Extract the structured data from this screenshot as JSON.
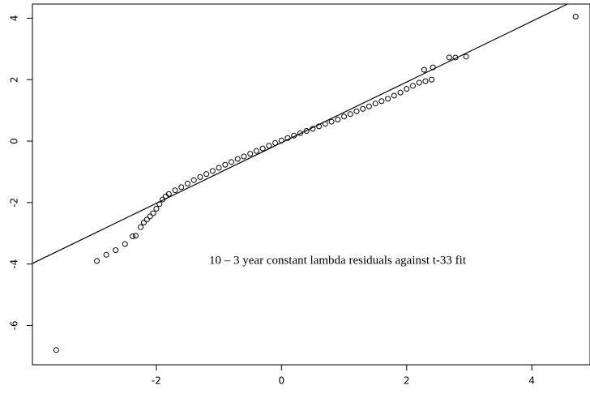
{
  "chart_data": {
    "type": "scatter",
    "annotation": "10 – 3 year constant lambda residuals against t-33 fit",
    "x": [
      -3.6,
      -2.95,
      -2.8,
      -2.65,
      -2.5,
      -2.38,
      -2.33,
      -2.25,
      -2.2,
      -2.15,
      -2.1,
      -2.05,
      -2.0,
      -1.95,
      -1.9,
      -1.85,
      -1.8,
      -1.7,
      -1.6,
      -1.5,
      -1.4,
      -1.3,
      -1.2,
      -1.1,
      -1.0,
      -0.9,
      -0.8,
      -0.7,
      -0.6,
      -0.5,
      -0.4,
      -0.3,
      -0.2,
      -0.1,
      0,
      0.1,
      0.2,
      0.3,
      0.4,
      0.5,
      0.6,
      0.7,
      0.8,
      0.9,
      1.0,
      1.1,
      1.2,
      1.3,
      1.4,
      1.5,
      1.6,
      1.7,
      1.8,
      1.9,
      2.0,
      2.1,
      2.2,
      2.3,
      2.4,
      2.28,
      2.42,
      2.68,
      2.78,
      2.95,
      4.7
    ],
    "values": [
      -6.8,
      -3.9,
      -3.7,
      -3.55,
      -3.35,
      -3.1,
      -3.08,
      -2.8,
      -2.65,
      -2.55,
      -2.45,
      -2.35,
      -2.2,
      -2.05,
      -1.9,
      -1.8,
      -1.72,
      -1.6,
      -1.5,
      -1.38,
      -1.27,
      -1.17,
      -1.07,
      -0.97,
      -0.87,
      -0.77,
      -0.68,
      -0.58,
      -0.5,
      -0.41,
      -0.32,
      -0.24,
      -0.15,
      -0.06,
      0.02,
      0.1,
      0.18,
      0.26,
      0.33,
      0.4,
      0.48,
      0.56,
      0.63,
      0.7,
      0.8,
      0.88,
      0.97,
      1.05,
      1.13,
      1.22,
      1.3,
      1.38,
      1.48,
      1.58,
      1.7,
      1.8,
      1.9,
      1.95,
      2.0,
      2.32,
      2.4,
      2.72,
      2.72,
      2.75,
      4.05
    ],
    "reference_line": {
      "x": [
        -3.98,
        4.57
      ],
      "y": [
        -3.98,
        4.46
      ]
    },
    "xlim": [
      -3.98,
      4.93
    ],
    "ylim": [
      -7.28,
      4.46
    ],
    "xticks": [
      -2,
      0,
      2,
      4
    ],
    "yticks": [
      -6,
      -4,
      -2,
      0,
      2,
      4
    ]
  }
}
